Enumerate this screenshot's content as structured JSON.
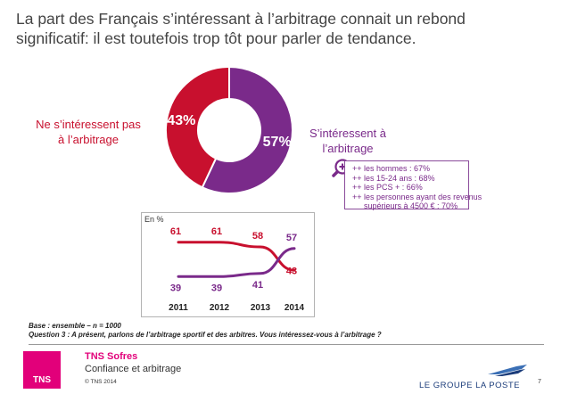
{
  "title_lines": [
    "La part des Français s’intéressant à l’arbitrage connait un rebond",
    "significatif: il est toutefois trop tôt pour parler de tendance."
  ],
  "chart_data": [
    {
      "type": "pie",
      "variant": "donut",
      "slices": [
        {
          "label_lines": [
            "S’intéressent à",
            "l’arbitrage"
          ],
          "value": 57,
          "value_label": "57%",
          "color": "#7a2a8a"
        },
        {
          "label_lines": [
            "Ne s’intéressent pas",
            "à l’arbitrage"
          ],
          "value": 43,
          "value_label": "43%",
          "color": "#c8102e"
        }
      ]
    },
    {
      "type": "line",
      "unit_label": "En %",
      "categories": [
        "2011",
        "2012",
        "2013",
        "2014"
      ],
      "ylim": [
        30,
        70
      ],
      "grid": false,
      "series": [
        {
          "key": "not_interested",
          "values": [
            61,
            61,
            58,
            43
          ],
          "color": "#c8102e"
        },
        {
          "key": "interested",
          "values": [
            39,
            39,
            41,
            57
          ],
          "color": "#7a2a8a"
        }
      ]
    }
  ],
  "details": [
    "++ les hommes : 67%",
    "++ les 15-24 ans : 68%",
    "++ les PCS + : 66%",
    "++ les personnes ayant des revenus",
    "supérieurs à 4500 € : 70%"
  ],
  "base_lines": [
    "Base : ensemble – n = 1000",
    "Question 3 : A présent, parlons de l’arbitrage sportif et des arbitres. Vous intéressez-vous à l’arbitrage ?"
  ],
  "footer": {
    "logo_text": "TNS",
    "brand": "TNS Sofres",
    "study": "Confiance et arbitrage",
    "copyright": "© TNS 2014",
    "partner": "LE GROUPE LA POSTE",
    "page_number": "7"
  },
  "colors": {
    "purple": "#7a2a8a",
    "red": "#c8102e",
    "magenta": "#e2007a",
    "navy": "#1b3c7a"
  },
  "icons": {
    "zoom": "magnifier-plus-icon",
    "bird": "la-poste-bird-logo"
  }
}
